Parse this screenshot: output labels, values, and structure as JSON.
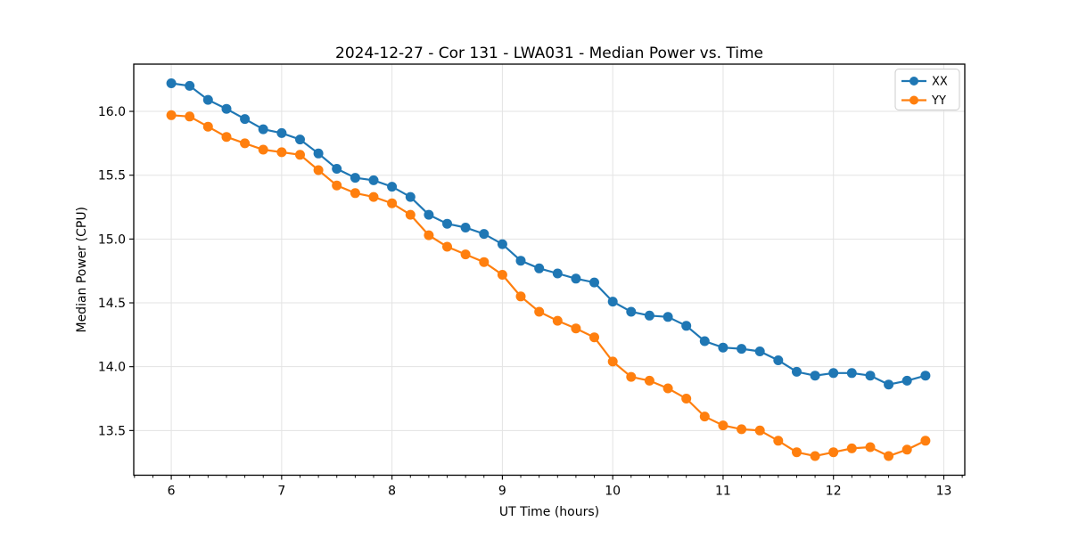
{
  "chart_data": {
    "type": "line",
    "title": "2024-12-27 - Cor 131 - LWA031 - Median Power vs. Time",
    "xlabel": "UT Time (hours)",
    "ylabel": "Median Power (CPU)",
    "xlim": [
      5.66,
      13.19
    ],
    "ylim": [
      13.15,
      16.37
    ],
    "x_ticks": [
      6,
      7,
      8,
      9,
      10,
      11,
      12,
      13
    ],
    "y_ticks": [
      13.5,
      14.0,
      14.5,
      15.0,
      15.5,
      16.0
    ],
    "x_minor_divisions_per_unit": 6,
    "grid": true,
    "grid_color": "#e3e3e3",
    "legend_position": "upper right",
    "x": [
      6.0,
      6.1667,
      6.3333,
      6.5,
      6.6667,
      6.8333,
      7.0,
      7.1667,
      7.3333,
      7.5,
      7.6667,
      7.8333,
      8.0,
      8.1667,
      8.3333,
      8.5,
      8.6667,
      8.8333,
      9.0,
      9.1667,
      9.3333,
      9.5,
      9.6667,
      9.8333,
      10.0,
      10.1667,
      10.3333,
      10.5,
      10.6667,
      10.8333,
      11.0,
      11.1667,
      11.3333,
      11.5,
      11.6667,
      11.8333,
      12.0,
      12.1667,
      12.3333,
      12.5,
      12.6667,
      12.8333
    ],
    "series": [
      {
        "name": "XX",
        "color": "#1f77b4",
        "values": [
          16.22,
          16.2,
          16.09,
          16.02,
          15.94,
          15.86,
          15.83,
          15.78,
          15.67,
          15.55,
          15.48,
          15.46,
          15.41,
          15.33,
          15.19,
          15.12,
          15.09,
          15.04,
          14.96,
          14.83,
          14.77,
          14.73,
          14.69,
          14.66,
          14.51,
          14.43,
          14.4,
          14.39,
          14.32,
          14.2,
          14.15,
          14.14,
          14.12,
          14.05,
          13.96,
          13.93,
          13.95,
          13.95,
          13.93,
          13.86,
          13.89,
          13.93
        ]
      },
      {
        "name": "YY",
        "color": "#ff7f0e",
        "values": [
          15.97,
          15.96,
          15.88,
          15.8,
          15.75,
          15.7,
          15.68,
          15.66,
          15.54,
          15.42,
          15.36,
          15.33,
          15.28,
          15.19,
          15.03,
          14.94,
          14.88,
          14.82,
          14.72,
          14.55,
          14.43,
          14.36,
          14.3,
          14.23,
          14.04,
          13.92,
          13.89,
          13.83,
          13.75,
          13.61,
          13.54,
          13.51,
          13.5,
          13.42,
          13.33,
          13.3,
          13.33,
          13.36,
          13.37,
          13.3,
          13.35,
          13.42
        ]
      }
    ]
  }
}
